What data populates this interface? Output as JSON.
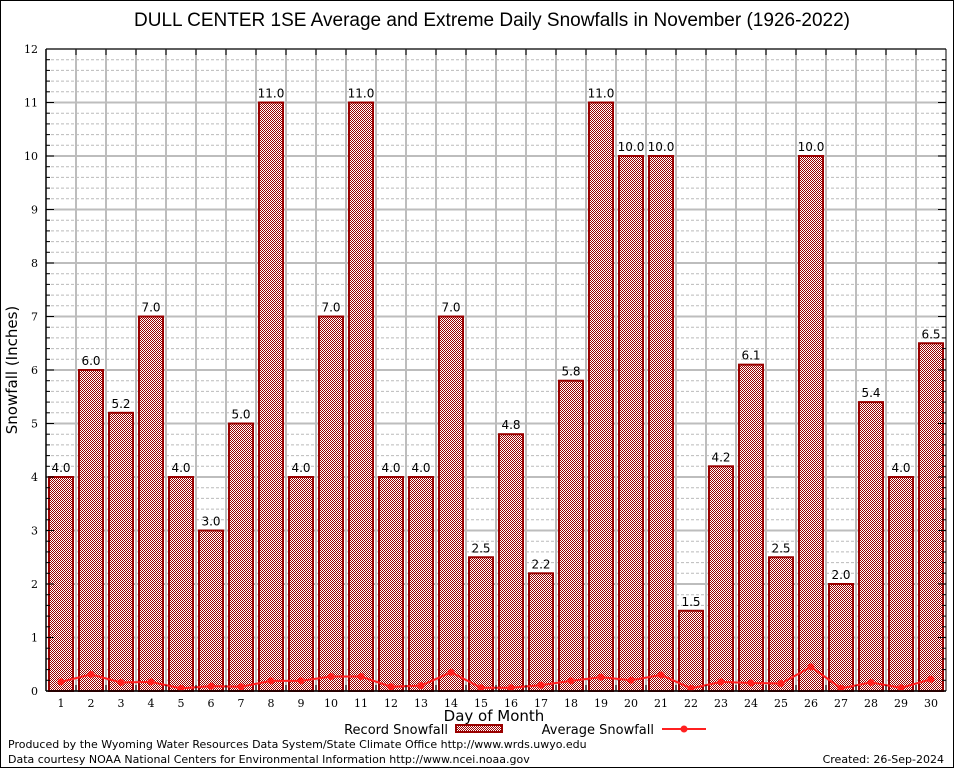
{
  "chart_data": {
    "type": "bar",
    "title": "DULL CENTER 1SE Average and Extreme Daily Snowfalls in November (1926-2022)",
    "xlabel": "Day of Month",
    "ylabel": "Snowfall (Inches)",
    "ylim": [
      0,
      12
    ],
    "yticks": [
      "0",
      "1",
      "2",
      "3",
      "4",
      "5",
      "6",
      "7",
      "8",
      "9",
      "10",
      "11",
      "12"
    ],
    "categories": [
      "1",
      "2",
      "3",
      "4",
      "5",
      "6",
      "7",
      "8",
      "9",
      "10",
      "11",
      "12",
      "13",
      "14",
      "15",
      "16",
      "17",
      "18",
      "19",
      "20",
      "21",
      "22",
      "23",
      "24",
      "25",
      "26",
      "27",
      "28",
      "29",
      "30"
    ],
    "series": [
      {
        "name": "Record Snowfall",
        "kind": "bar",
        "color": "#990000",
        "values": [
          4.0,
          6.0,
          5.2,
          7.0,
          4.0,
          3.0,
          5.0,
          11.0,
          4.0,
          7.0,
          11.0,
          4.0,
          4.0,
          7.0,
          2.5,
          4.8,
          2.2,
          5.8,
          11.0,
          10.0,
          10.0,
          1.5,
          4.2,
          6.1,
          2.5,
          10.0,
          2.0,
          5.4,
          4.0,
          6.5
        ],
        "labels": [
          "4.0",
          "6.0",
          "5.2",
          "7.0",
          "4.0",
          "3.0",
          "5.0",
          "11.0",
          "4.0",
          "7.0",
          "11.0",
          "4.0",
          "4.0",
          "7.0",
          "2.5",
          "4.8",
          "2.2",
          "5.8",
          "11.0",
          "10.0",
          "10.0",
          "1.5",
          "4.2",
          "6.1",
          "2.5",
          "10.0",
          "2.0",
          "5.4",
          "4.0",
          "6.5"
        ]
      },
      {
        "name": "Average Snowfall",
        "kind": "line",
        "color": "#ff2020",
        "values": [
          0.17,
          0.31,
          0.16,
          0.17,
          0.05,
          0.09,
          0.08,
          0.19,
          0.19,
          0.27,
          0.27,
          0.08,
          0.1,
          0.35,
          0.06,
          0.06,
          0.11,
          0.19,
          0.26,
          0.2,
          0.3,
          0.05,
          0.17,
          0.15,
          0.14,
          0.45,
          0.05,
          0.16,
          0.06,
          0.22
        ]
      }
    ],
    "grid": true,
    "legend": "bottom-center"
  },
  "footer": {
    "produced_by": "Produced by the Wyoming Water Resources Data System/State Climate Office http://www.wrds.uwyo.edu",
    "data_courtesy": "Data courtesy NOAA National Centers for Environmental Information http://www.ncei.noaa.gov",
    "created": "Created:  26-Sep-2024"
  }
}
